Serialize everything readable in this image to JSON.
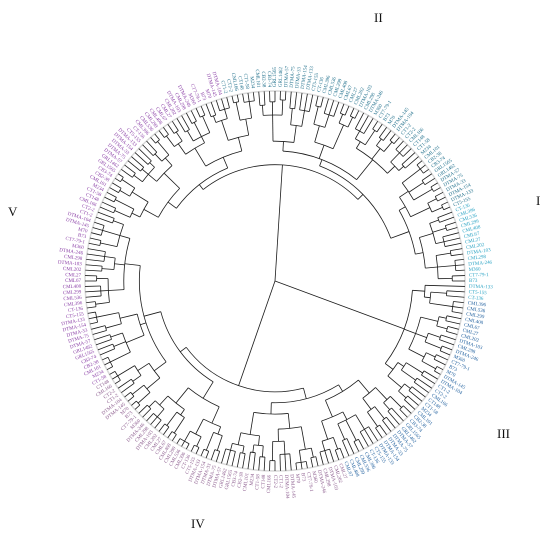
{
  "figure": {
    "group_labels": [
      {
        "id": "I",
        "text": "I"
      },
      {
        "id": "II",
        "text": "II"
      },
      {
        "id": "III",
        "text": "III"
      },
      {
        "id": "IV",
        "text": "IV"
      },
      {
        "id": "V",
        "text": "V"
      }
    ],
    "clade_colors": {
      "I": "#29a3c4",
      "II": "#1f6f8b",
      "III": "#1f5f9e",
      "IV": "#8a5a8c",
      "V": "#8a3fa6"
    },
    "visible_tip_labels": [
      "B73",
      "CT7-79-1",
      "M360",
      "DTMA-246",
      "CML298",
      "DTMA-103",
      "CML202",
      "CML27",
      "CML67",
      "CML408",
      "CML299",
      "CML536",
      "CML396",
      "CT-136",
      "CT5-155",
      "DTMA-133",
      "DTMA-154",
      "DTMA-33",
      "DTMA-75",
      "DTMA-57",
      "GRL1462",
      "GRL1565",
      "CB3-74",
      "CB2-38",
      "CML101",
      "M234",
      "CT1-58",
      "CT148",
      "CML166",
      "CT2-2",
      "CT1-2",
      "DTMA-104",
      "DTMA-145",
      "M70"
    ]
  }
}
